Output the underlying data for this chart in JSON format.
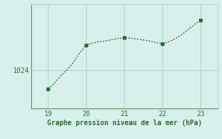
{
  "x": [
    19,
    19.17,
    19.33,
    19.5,
    19.67,
    19.83,
    20,
    20.17,
    20.33,
    20.5,
    20.67,
    20.83,
    21,
    21.17,
    21.33,
    21.5,
    21.67,
    21.83,
    22,
    22.17,
    22.33,
    22.5,
    22.67,
    22.83,
    23
  ],
  "y": [
    1021.3,
    1022.2,
    1023.2,
    1024.1,
    1025.2,
    1026.5,
    1027.6,
    1027.9,
    1028.1,
    1028.2,
    1028.4,
    1028.55,
    1028.7,
    1028.6,
    1028.5,
    1028.35,
    1028.2,
    1028.0,
    1027.8,
    1028.1,
    1028.5,
    1029.1,
    1029.8,
    1030.5,
    1031.2
  ],
  "key_x": [
    19,
    20,
    21,
    22,
    23
  ],
  "key_y": [
    1021.3,
    1027.6,
    1028.7,
    1027.8,
    1031.2
  ],
  "line_color": "#2d6a2d",
  "bg_color": "#d8f0ec",
  "grid_color": "#a8d8d0",
  "border_color": "#5a8a5a",
  "xlabel": "Graphe pression niveau de la mer (hPa)",
  "ytick_label": "1024",
  "ytick_value": 1024,
  "xlim": [
    18.55,
    23.45
  ],
  "ylim": [
    1018.5,
    1033.5
  ],
  "xticks": [
    19,
    20,
    21,
    22,
    23
  ],
  "yticks": [
    1024
  ],
  "xlabel_fontsize": 7,
  "tick_fontsize": 7
}
